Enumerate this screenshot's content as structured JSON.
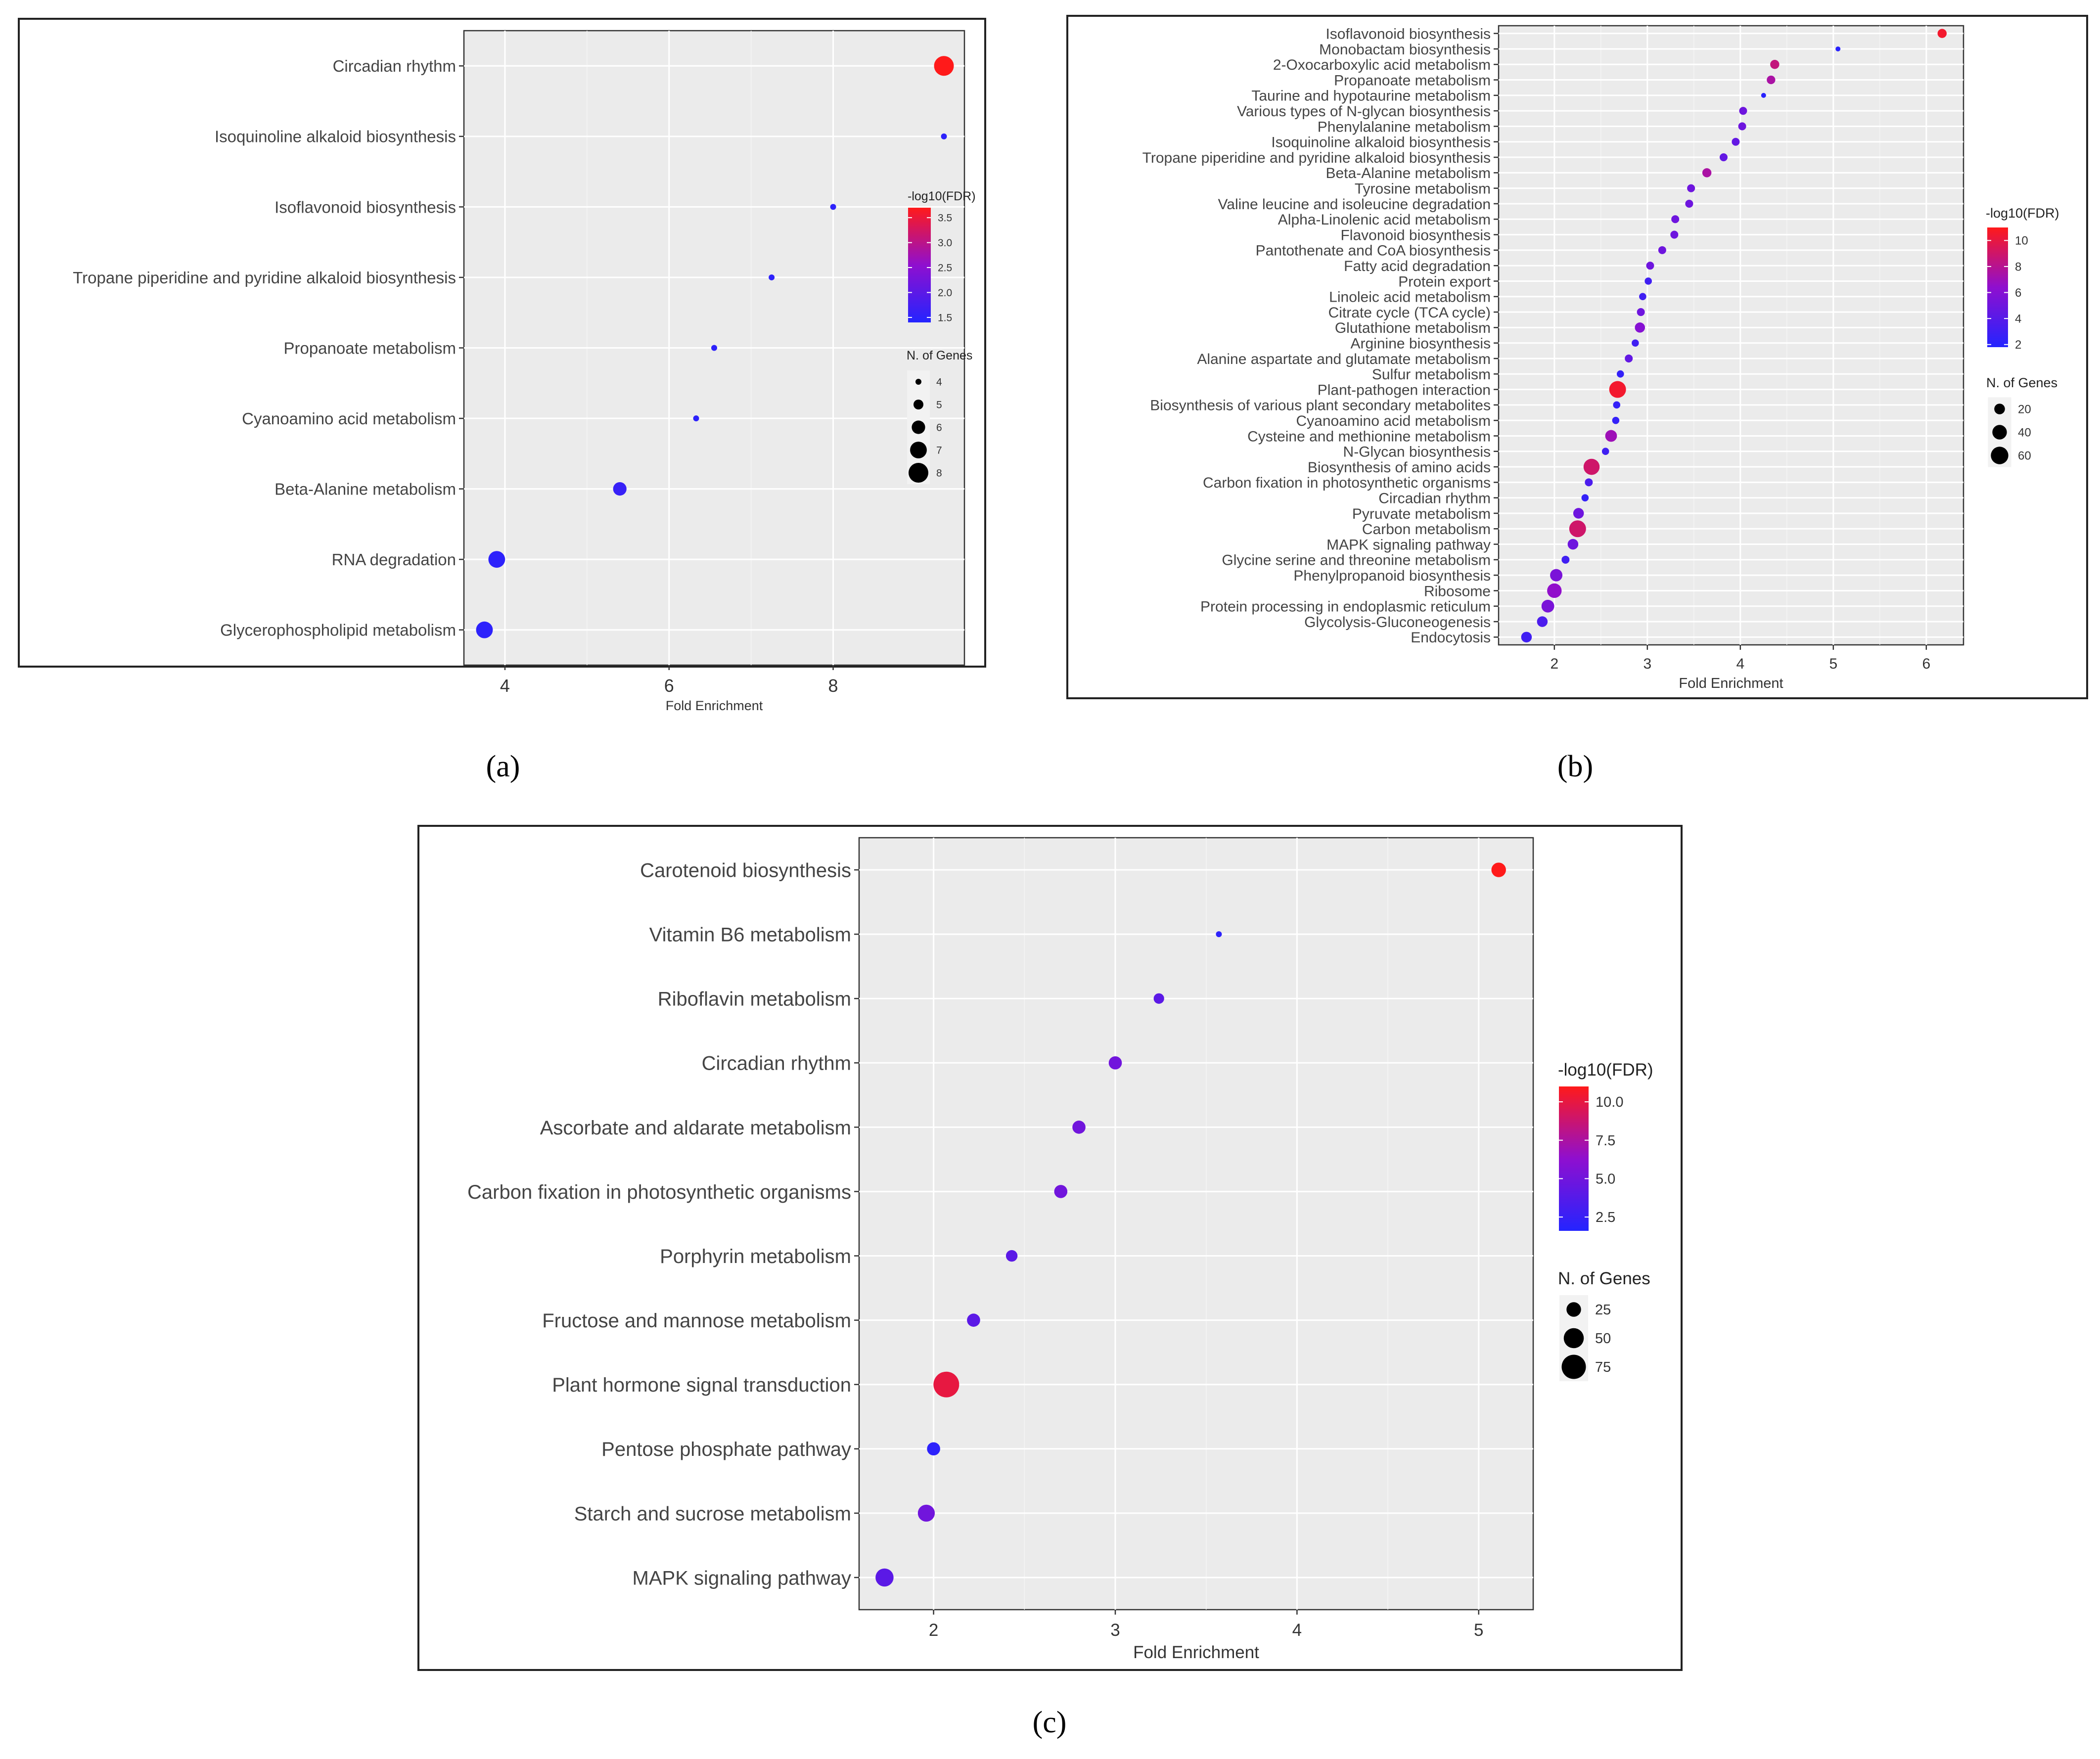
{
  "chart_data": [
    {
      "type": "scatter",
      "panel_label": "(a)",
      "xlabel": "Fold Enrichment",
      "xlim": [
        3.5,
        9.6
      ],
      "xticks": [
        4,
        6,
        8
      ],
      "color_legend": {
        "title": "-log10(FDR)",
        "min": 1.4,
        "max": 3.7,
        "ticks": [
          1.5,
          2.0,
          2.5,
          3.0,
          3.5
        ],
        "tick_labels": [
          "1.5",
          "2.0",
          "2.5",
          "3.0",
          "3.5"
        ]
      },
      "size_legend": {
        "title": "N. of Genes",
        "min": 4,
        "max": 8,
        "values": [
          4,
          5,
          6,
          7,
          8
        ],
        "labels": [
          "4",
          "5",
          "6",
          "7",
          "8"
        ]
      },
      "categories": [
        "Circadian rhythm",
        "Isoquinoline alkaloid biosynthesis",
        "Isoflavonoid biosynthesis",
        "Tropane piperidine and pyridine alkaloid biosynthesis",
        "Propanoate metabolism",
        "Cyanoamino acid metabolism",
        "Beta-Alanine metabolism",
        "RNA degradation",
        "Glycerophospholipid metabolism"
      ],
      "x": [
        9.35,
        9.35,
        8.0,
        7.25,
        6.55,
        6.33,
        5.4,
        3.9,
        3.75
      ],
      "fdr": [
        3.7,
        1.5,
        1.5,
        1.5,
        1.5,
        1.5,
        1.6,
        1.5,
        1.5
      ],
      "genes": [
        8,
        4,
        4,
        4,
        4,
        4,
        6,
        7,
        7
      ]
    },
    {
      "type": "scatter",
      "panel_label": "(b)",
      "xlabel": "Fold Enrichment",
      "xlim": [
        1.4,
        6.4
      ],
      "xticks": [
        2,
        3,
        4,
        5,
        6
      ],
      "color_legend": {
        "title": "-log10(FDR)",
        "min": 1.8,
        "max": 11,
        "ticks": [
          2,
          4,
          6,
          8,
          10
        ],
        "tick_labels": [
          "2",
          "4",
          "6",
          "8",
          "10"
        ]
      },
      "size_legend": {
        "title": "N. of Genes",
        "min": 3,
        "max": 70,
        "values": [
          20,
          40,
          60
        ],
        "labels": [
          "20",
          "40",
          "60"
        ]
      },
      "categories": [
        "Isoflavonoid biosynthesis",
        "Monobactam biosynthesis",
        "2-Oxocarboxylic acid metabolism",
        "Propanoate metabolism",
        "Taurine and hypotaurine metabolism",
        "Various types of N-glycan biosynthesis",
        "Phenylalanine metabolism",
        "Isoquinoline alkaloid biosynthesis",
        "Tropane piperidine and pyridine alkaloid biosynthesis",
        "Beta-Alanine metabolism",
        "Tyrosine metabolism",
        "Valine leucine and isoleucine degradation",
        "Alpha-Linolenic acid metabolism",
        "Flavonoid biosynthesis",
        "Pantothenate and CoA biosynthesis",
        "Fatty acid degradation",
        "Protein export",
        "Linoleic acid metabolism",
        "Citrate cycle (TCA cycle)",
        "Glutathione metabolism",
        "Arginine biosynthesis",
        "Alanine aspartate and glutamate metabolism",
        "Sulfur metabolism",
        "Plant-pathogen interaction",
        "Biosynthesis of various plant secondary metabolites",
        "Cyanoamino acid metabolism",
        "Cysteine and methionine metabolism",
        "N-Glycan biosynthesis",
        "Biosynthesis of amino acids",
        "Carbon fixation in photosynthetic organisms",
        "Circadian rhythm",
        "Pyruvate metabolism",
        "Carbon metabolism",
        "MAPK signaling pathway",
        "Glycine serine and threonine metabolism",
        "Phenylpropanoid biosynthesis",
        "Ribosome",
        "Protein processing in endoplasmic reticulum",
        "Glycolysis-Gluconeogenesis",
        "Endocytosis"
      ],
      "x": [
        6.17,
        5.05,
        4.37,
        4.33,
        4.25,
        4.03,
        4.02,
        3.95,
        3.82,
        3.64,
        3.47,
        3.45,
        3.3,
        3.29,
        3.16,
        3.03,
        3.01,
        2.95,
        2.93,
        2.92,
        2.87,
        2.8,
        2.71,
        2.68,
        2.67,
        2.66,
        2.61,
        2.55,
        2.4,
        2.37,
        2.33,
        2.26,
        2.25,
        2.2,
        2.12,
        2.02,
        2.0,
        1.93,
        1.87,
        1.7
      ],
      "fdr": [
        10.5,
        2.0,
        8.5,
        7.5,
        2.0,
        5.0,
        5.0,
        4.5,
        4.5,
        7.5,
        5.0,
        5.0,
        5.0,
        5.0,
        5.0,
        5.0,
        3.0,
        3.0,
        5.0,
        6.0,
        3.0,
        4.5,
        2.5,
        10.5,
        2.5,
        2.5,
        7.0,
        3.0,
        9.0,
        3.5,
        2.5,
        5.0,
        9.0,
        5.0,
        3.0,
        5.5,
        6.5,
        5.5,
        3.5,
        3.0
      ],
      "genes": [
        14,
        3,
        14,
        12,
        3,
        10,
        10,
        10,
        10,
        14,
        10,
        10,
        10,
        10,
        10,
        10,
        8,
        8,
        10,
        18,
        8,
        10,
        8,
        55,
        8,
        8,
        25,
        8,
        50,
        10,
        8,
        20,
        55,
        20,
        10,
        28,
        40,
        30,
        20,
        20
      ]
    },
    {
      "type": "scatter",
      "panel_label": "(c)",
      "xlabel": "Fold Enrichment",
      "xlim": [
        1.59,
        5.3
      ],
      "xticks": [
        2,
        3,
        4,
        5
      ],
      "color_legend": {
        "title": "-log10(FDR)",
        "min": 1.6,
        "max": 11.0,
        "ticks": [
          2.5,
          5.0,
          7.5,
          10.0
        ],
        "tick_labels": [
          "2.5",
          "5.0",
          "7.5",
          "10.0"
        ]
      },
      "size_legend": {
        "title": "N. of Genes",
        "min": 3,
        "max": 85,
        "values": [
          25,
          50,
          75
        ],
        "labels": [
          "25",
          "50",
          "75"
        ]
      },
      "categories": [
        "Carotenoid biosynthesis",
        "Vitamin B6 metabolism",
        "Riboflavin metabolism",
        "Circadian rhythm",
        "Ascorbate and aldarate metabolism",
        "Carbon fixation in photosynthetic organisms",
        "Porphyrin metabolism",
        "Fructose and mannose metabolism",
        "Plant hormone signal transduction",
        "Pentose phosphate pathway",
        "Starch and sucrose metabolism",
        "MAPK signaling pathway"
      ],
      "x": [
        5.11,
        3.57,
        3.24,
        3.0,
        2.8,
        2.7,
        2.43,
        2.22,
        2.07,
        2.0,
        1.96,
        1.73
      ],
      "fdr": [
        11.0,
        2.0,
        4.0,
        5.0,
        5.0,
        5.0,
        4.0,
        4.0,
        10.0,
        2.0,
        5.0,
        4.0
      ],
      "genes": [
        25,
        3,
        12,
        20,
        20,
        20,
        15,
        20,
        85,
        20,
        35,
        40
      ]
    }
  ]
}
